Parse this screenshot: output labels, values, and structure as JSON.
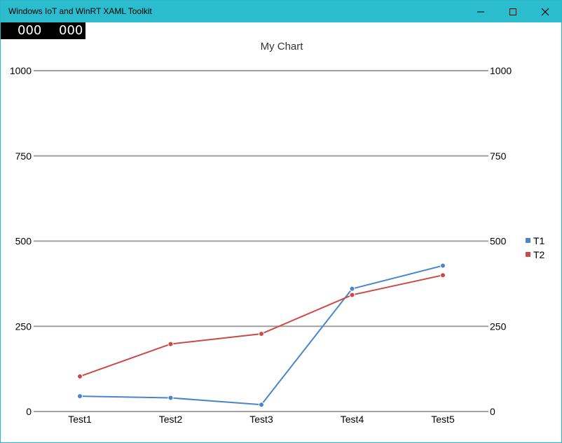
{
  "window": {
    "title": "Windows IoT and WinRT XAML Toolkit",
    "fps_a": "000",
    "fps_b": "000",
    "icons": [
      "minimize-icon",
      "maximize-icon",
      "close-icon"
    ]
  },
  "chart_data": {
    "type": "line",
    "title": "My Chart",
    "categories": [
      "Test1",
      "Test2",
      "Test3",
      "Test4",
      "Test5"
    ],
    "series": [
      {
        "name": "T1",
        "color": "#4a85cc",
        "values": [
          45,
          40,
          20,
          360,
          428
        ]
      },
      {
        "name": "T2",
        "color": "#cc4a45",
        "values": [
          103,
          198,
          228,
          342,
          400
        ]
      }
    ],
    "ylim": [
      0,
      1000
    ],
    "yticks": [
      0,
      250,
      500,
      750,
      1000
    ],
    "grid": true,
    "secondary_y_axis": true,
    "legend": "right"
  }
}
